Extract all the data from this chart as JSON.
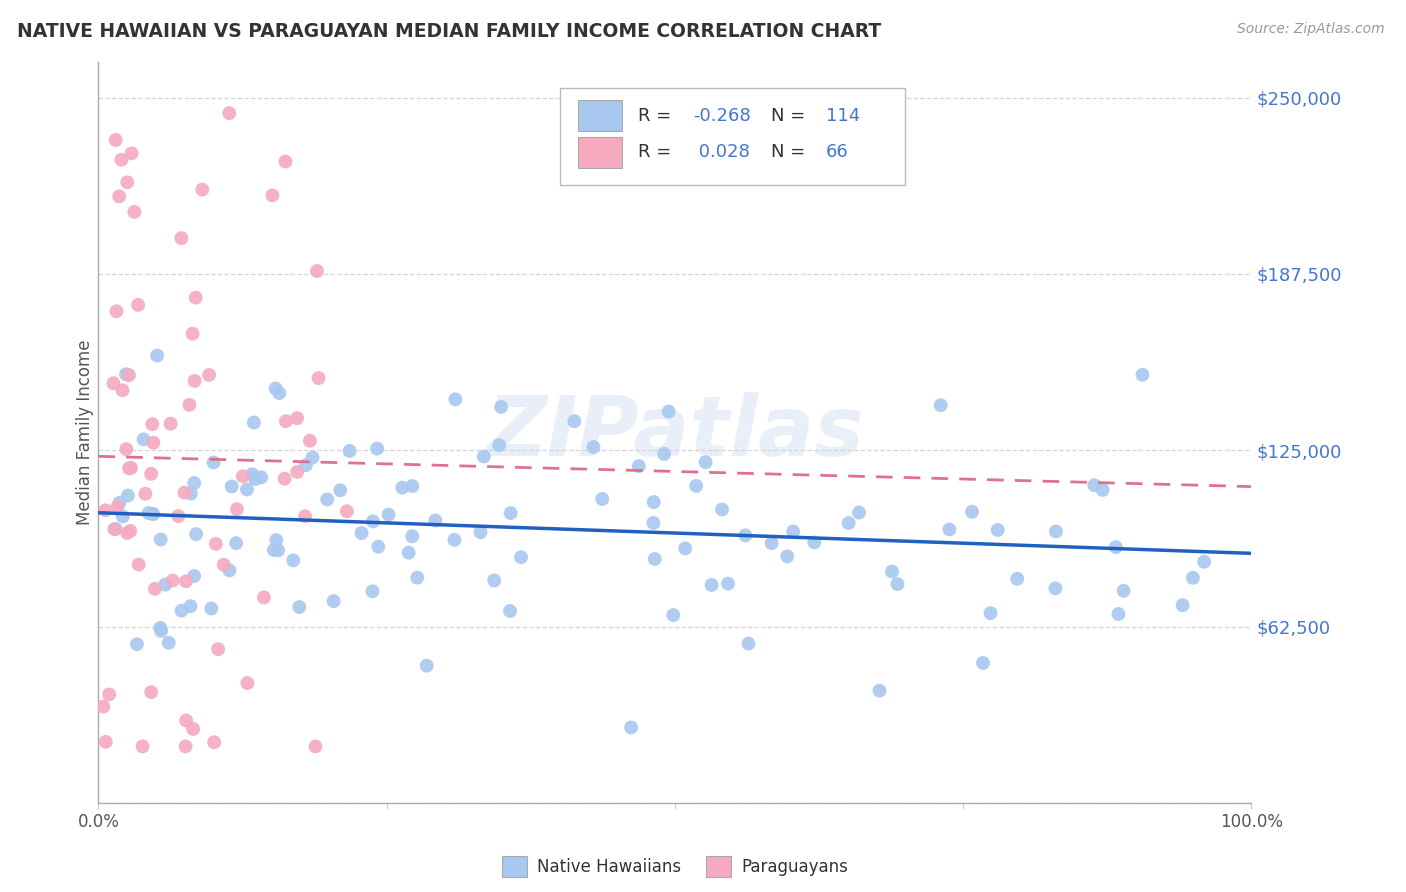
{
  "title": "NATIVE HAWAIIAN VS PARAGUAYAN MEDIAN FAMILY INCOME CORRELATION CHART",
  "source": "Source: ZipAtlas.com",
  "ylabel": "Median Family Income",
  "yticks": [
    0,
    62500,
    125000,
    187500,
    250000
  ],
  "ytick_labels": [
    "",
    "$62,500",
    "$125,000",
    "$187,500",
    "$250,000"
  ],
  "xlim": [
    0.0,
    1.0
  ],
  "ylim": [
    0,
    262500
  ],
  "blue_R": -0.268,
  "blue_N": 114,
  "pink_R": 0.028,
  "pink_N": 66,
  "blue_color": "#A8C8F0",
  "pink_color": "#F5AABF",
  "blue_line_color": "#2060C0",
  "pink_line_color": "#E07090",
  "bg_color": "#FFFFFF",
  "grid_color": "#CCCCCC",
  "title_color": "#333333",
  "axis_label_color": "#4477CC",
  "legend_text_color": "#4477CC",
  "watermark": "ZIPatlas",
  "label_R": "R =",
  "label_N": "N =",
  "legend_blue_label": "Native Hawaiians",
  "legend_pink_label": "Paraguayans"
}
